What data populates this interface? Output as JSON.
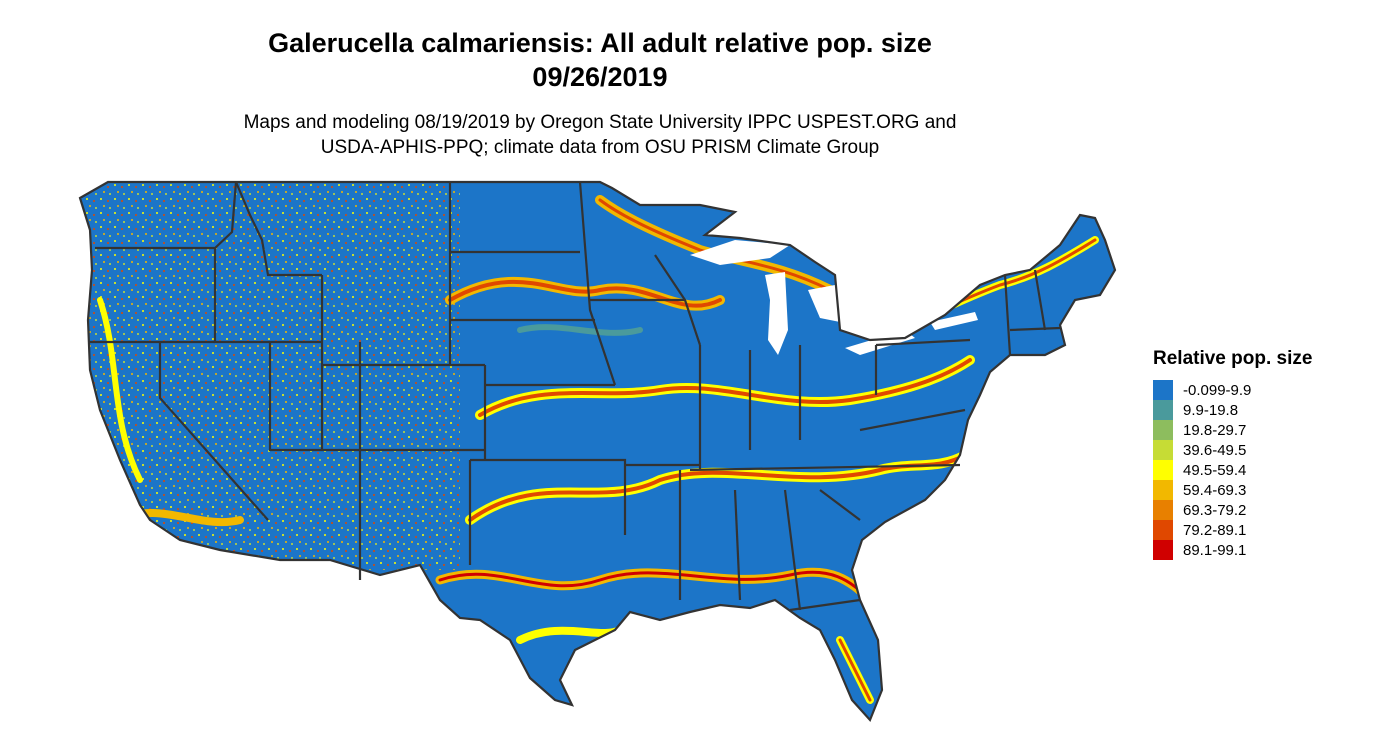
{
  "title_line1": "Galerucella calmariensis: All adult relative pop. size",
  "title_line2": "09/26/2019",
  "subtitle_line1": "Maps and modeling 08/19/2019 by Oregon State University IPPC USPEST.ORG and",
  "subtitle_line2": "USDA-APHIS-PPQ; climate data from OSU PRISM Climate Group",
  "legend": {
    "title": "Relative pop. size",
    "items": [
      {
        "label": "-0.099-9.9",
        "color": "#1c75c8"
      },
      {
        "label": "9.9-19.8",
        "color": "#4a9a9c"
      },
      {
        "label": "19.8-29.7",
        "color": "#8dbd5e"
      },
      {
        "label": "39.6-49.5",
        "color": "#c6dc35"
      },
      {
        "label": "49.5-59.4",
        "color": "#ffff00"
      },
      {
        "label": "59.4-69.3",
        "color": "#f2b800"
      },
      {
        "label": "69.3-79.2",
        "color": "#e88000"
      },
      {
        "label": "79.2-89.1",
        "color": "#e04800"
      },
      {
        "label": "89.1-99.1",
        "color": "#d00000"
      }
    ]
  }
}
